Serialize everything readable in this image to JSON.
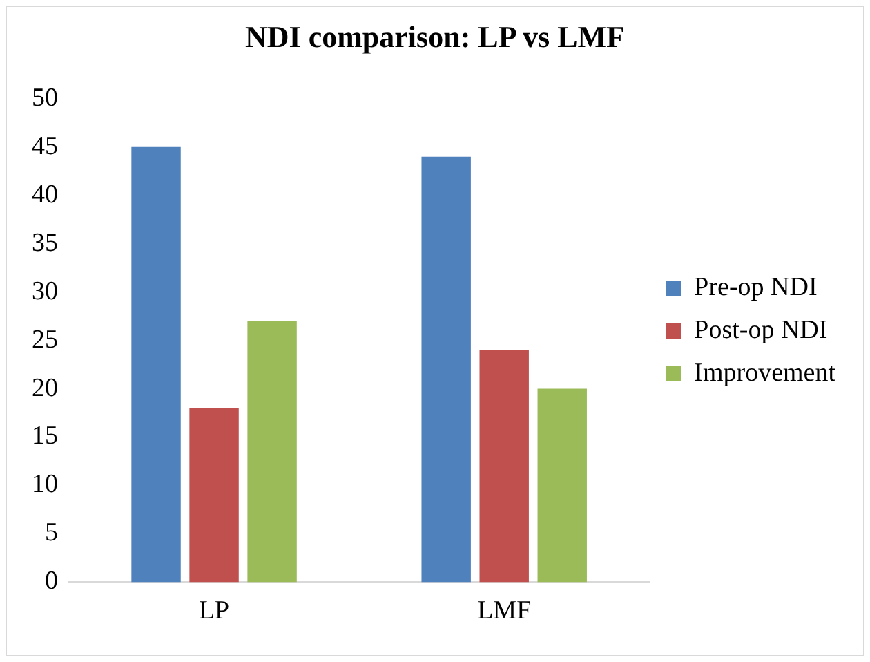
{
  "chart_data": {
    "type": "bar",
    "title": "NDI comparison: LP vs LMF",
    "categories": [
      "LP",
      "LMF"
    ],
    "series": [
      {
        "name": "Pre-op NDI",
        "color": "#4f81bd",
        "values": [
          45,
          44
        ]
      },
      {
        "name": "Post-op NDI",
        "color": "#c0504d",
        "values": [
          18,
          24
        ]
      },
      {
        "name": "Improvement",
        "color": "#9bbb59",
        "values": [
          27,
          20
        ]
      }
    ],
    "ylim": [
      0,
      50
    ],
    "yticks": [
      0,
      5,
      10,
      15,
      20,
      25,
      30,
      35,
      40,
      45,
      50
    ],
    "grid": false,
    "legend": "right"
  }
}
